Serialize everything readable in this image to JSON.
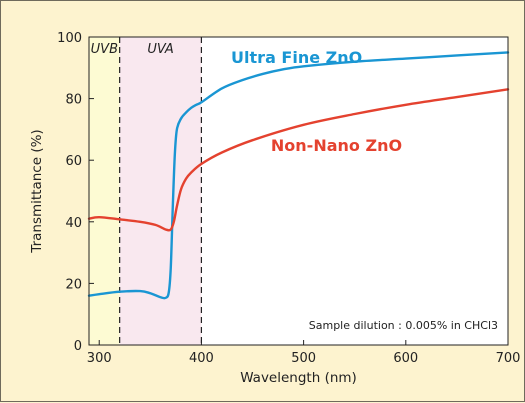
{
  "chart_data": {
    "type": "line",
    "xlabel": "Wavelength  (nm)",
    "ylabel": "Transmittance (%)",
    "xlim": [
      290,
      700
    ],
    "ylim": [
      0,
      100
    ],
    "xticks": [
      300,
      400,
      500,
      600,
      700
    ],
    "yticks": [
      0,
      20,
      40,
      60,
      80,
      100
    ],
    "grid": false,
    "note": "Sample dilution : 0.005% in CHCl3",
    "bands": [
      {
        "label": "UVB",
        "from": 290,
        "to": 320,
        "color": "#fdfbd3"
      },
      {
        "label": "UVA",
        "from": 320,
        "to": 400,
        "color": "#f9e8ef"
      }
    ],
    "band_boundaries": [
      320,
      400
    ],
    "series": [
      {
        "name": "Ultra Fine ZnO",
        "color": "#1a96d3",
        "x": [
          290,
          300,
          320,
          340,
          350,
          360,
          365,
          368,
          370,
          372,
          374,
          376,
          380,
          385,
          390,
          395,
          400,
          420,
          440,
          460,
          480,
          500,
          550,
          600,
          650,
          700
        ],
        "y": [
          16,
          16.5,
          17.3,
          17.5,
          16.8,
          15.5,
          15.3,
          17,
          25,
          45,
          62,
          70,
          73.5,
          75.5,
          77,
          78,
          78.8,
          83.3,
          86,
          88,
          89.5,
          90.5,
          92,
          93,
          94,
          95
        ]
      },
      {
        "name": "Non-Nano ZnO",
        "color": "#e4422f",
        "x": [
          290,
          300,
          320,
          340,
          355,
          365,
          370,
          373,
          376,
          380,
          385,
          390,
          400,
          420,
          450,
          500,
          550,
          600,
          650,
          700
        ],
        "y": [
          41,
          41.5,
          40.8,
          40,
          39,
          37.5,
          37.5,
          40,
          45,
          50.5,
          54,
          56,
          58.8,
          62.5,
          66.5,
          71.5,
          75,
          78,
          80.5,
          83
        ]
      }
    ]
  }
}
